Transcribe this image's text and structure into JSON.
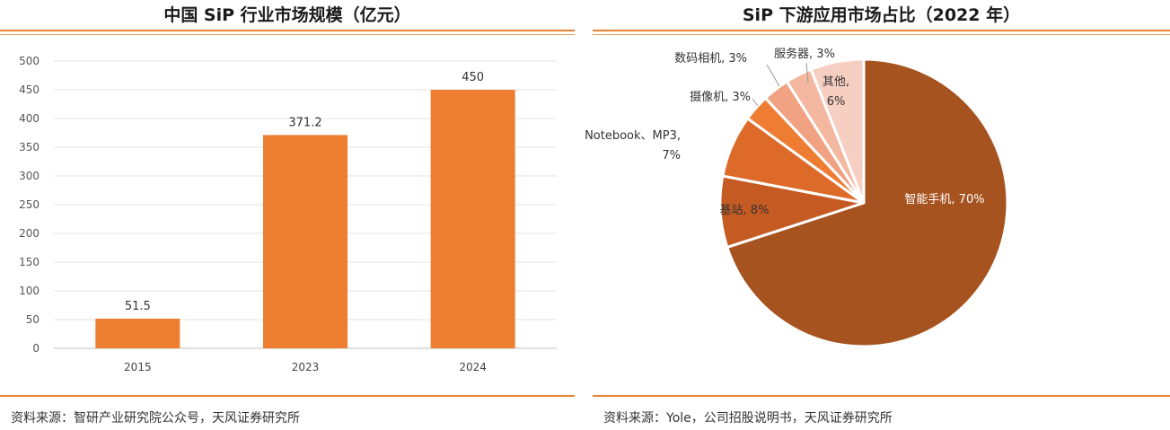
{
  "left": {
    "title": "中国 SiP 行业市场规模（亿元）",
    "source": "资料来源：智研产业研究院公众号，天风证券研究所"
  },
  "right": {
    "title": "SiP 下游应用市场占比（2022 年）",
    "source": "资料来源：Yole，公司招股说明书，天风证券研究所"
  },
  "chart_data": [
    {
      "type": "bar",
      "title": "中国 SiP 行业市场规模（亿元）",
      "categories": [
        "2015",
        "2023",
        "2024"
      ],
      "values": [
        51.5,
        371.2,
        450
      ],
      "data_labels": [
        "51.5",
        "371.2",
        "450"
      ],
      "ylim": [
        0,
        500
      ],
      "yticks": [
        0,
        50,
        100,
        150,
        200,
        250,
        300,
        350,
        400,
        450,
        500
      ],
      "grid": true,
      "color": "#ED7D31"
    },
    {
      "type": "pie",
      "title": "SiP 下游应用市场占比（2022 年）",
      "slices": [
        {
          "label": "智能手机, 70%",
          "value": 70,
          "color": "#A65320"
        },
        {
          "label": "基站, 8%",
          "value": 8,
          "color": "#C55A22"
        },
        {
          "label": "Notebook、MP3, 7%",
          "value": 7,
          "color": "#DE6A2A"
        },
        {
          "label": "摄像机, 3%",
          "value": 3,
          "color": "#EE7D33"
        },
        {
          "label": "数码相机, 3%",
          "value": 3,
          "color": "#F0A282"
        },
        {
          "label": "服务器, 3%",
          "value": 3,
          "color": "#F4B79F"
        },
        {
          "label": "其他, 6%",
          "value": 6,
          "color": "#F7CFC2"
        }
      ]
    }
  ]
}
